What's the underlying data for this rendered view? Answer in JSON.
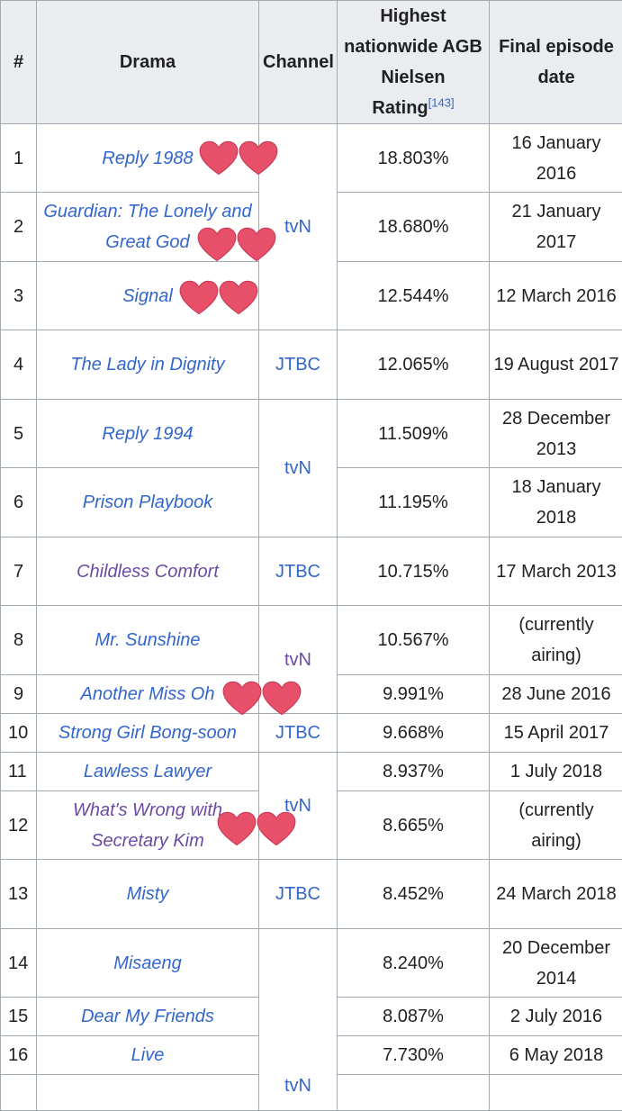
{
  "header": {
    "num": "#",
    "drama": "Drama",
    "channel": "Channel",
    "rating_main": "Highest nationwide AGB Nielsen Rating",
    "rating_ref": "[143]",
    "date": "Final episode date"
  },
  "rows": [
    {
      "num": "1",
      "drama": "Reply 1988",
      "rating": "18.803%",
      "date": "16 January 2016"
    },
    {
      "num": "2",
      "drama": "Guardian: The Lonely and Great God",
      "rating": "18.680%",
      "date": "21 January 2017"
    },
    {
      "num": "3",
      "drama": "Signal",
      "rating": "12.544%",
      "date": "12 March 2016"
    },
    {
      "num": "4",
      "drama": "The Lady in Dignity",
      "rating": "12.065%",
      "date": "19 August 2017"
    },
    {
      "num": "5",
      "drama": "Reply 1994",
      "rating": "11.509%",
      "date": "28 December 2013"
    },
    {
      "num": "6",
      "drama": "Prison Playbook",
      "rating": "11.195%",
      "date": "18 January 2018"
    },
    {
      "num": "7",
      "drama": "Childless Comfort",
      "rating": "10.715%",
      "date": "17 March 2013"
    },
    {
      "num": "8",
      "drama": "Mr. Sunshine",
      "rating": "10.567%",
      "date": "(currently airing)"
    },
    {
      "num": "9",
      "drama": "Another Miss Oh",
      "rating": "9.991%",
      "date": "28 June 2016"
    },
    {
      "num": "10",
      "drama": "Strong Girl Bong-soon",
      "rating": "9.668%",
      "date": "15 April 2017"
    },
    {
      "num": "11",
      "drama": "Lawless Lawyer",
      "rating": "8.937%",
      "date": "1 July 2018"
    },
    {
      "num": "12",
      "drama": "What's Wrong with Secretary Kim",
      "rating": "8.665%",
      "date": "(currently airing)"
    },
    {
      "num": "13",
      "drama": "Misty",
      "rating": "8.452%",
      "date": "24 March 2018"
    },
    {
      "num": "14",
      "drama": "Misaeng",
      "rating": "8.240%",
      "date": "20 December 2014"
    },
    {
      "num": "15",
      "drama": "Dear My Friends",
      "rating": "8.087%",
      "date": "2 July 2016"
    },
    {
      "num": "16",
      "drama": "Live",
      "rating": "7.730%",
      "date": "6 May 2018"
    }
  ],
  "channels": {
    "tvn_a": "tvN",
    "jtbc_a": "JTBC",
    "tvn_b": "tvN",
    "jtbc_b": "JTBC",
    "tvn_c": "tvN",
    "jtbc_c": "JTBC",
    "tvn_d": "tvN",
    "jtbc_d": "JTBC",
    "tvn_e": "tvN"
  },
  "colors": {
    "link": "#3366cc",
    "visited_link": "#6b4ba1",
    "heart": "#e8506a",
    "header_bg": "#eaecf0",
    "border": "#a2a9b1"
  },
  "stickers": "heart-icon"
}
